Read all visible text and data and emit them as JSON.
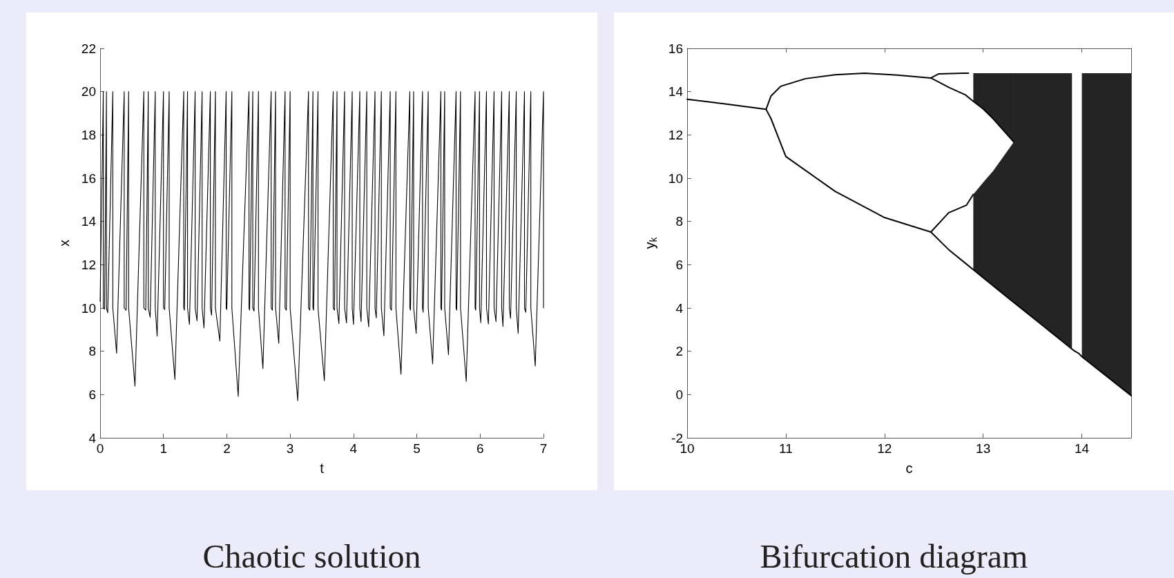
{
  "chart_data": [
    {
      "type": "line",
      "title": "Chaotic solution",
      "xlabel": "t",
      "ylabel": "x",
      "color": "#000000",
      "marker": "none",
      "line_style": "solid",
      "x": [
        0,
        0.05,
        0.05,
        0.07,
        0.1,
        0.1,
        0.12,
        0.2,
        0.2,
        0.26,
        0.38,
        0.38,
        0.41,
        0.45,
        0.45,
        0.55,
        0.69,
        0.69,
        0.72,
        0.76,
        0.76,
        0.79,
        0.87,
        0.87,
        0.9,
        1,
        1,
        1.02,
        1.09,
        1.09,
        1.18,
        1.32,
        1.32,
        1.33,
        1.38,
        1.38,
        1.41,
        1.5,
        1.5,
        1.53,
        1.61,
        1.61,
        1.64,
        1.74,
        1.74,
        1.76,
        1.82,
        1.82,
        1.89,
        1.99,
        1.99,
        2,
        2.08,
        2.08,
        2.18,
        2.35,
        2.35,
        2.36,
        2.41,
        2.41,
        2.43,
        2.5,
        2.5,
        2.57,
        2.7,
        2.7,
        2.72,
        2.77,
        2.77,
        2.82,
        2.92,
        2.92,
        2.94,
        3,
        3,
        3.12,
        3.29,
        3.29,
        3.31,
        3.36,
        3.36,
        3.37,
        3.44,
        3.44,
        3.54,
        3.68,
        3.68,
        3.7,
        3.74,
        3.74,
        3.77,
        3.86,
        3.86,
        3.89,
        3.98,
        3.98,
        4,
        4.1,
        4.1,
        4.12,
        4.21,
        4.21,
        4.24,
        4.34,
        4.34,
        4.36,
        4.44,
        4.44,
        4.48,
        4.58,
        4.58,
        4.6,
        4.67,
        4.67,
        4.75,
        4.89,
        4.89,
        4.9,
        4.95,
        4.95,
        4.99,
        5.09,
        5.09,
        5.1,
        5.18,
        5.18,
        5.25,
        5.38,
        5.38,
        5.39,
        5.44,
        5.44,
        5.5,
        5.62,
        5.62,
        5.63,
        5.69,
        5.69,
        5.78,
        5.92,
        5.92,
        5.93,
        5.99,
        5.99,
        6.01,
        6.1,
        6.1,
        6.13,
        6.22,
        6.22,
        6.25,
        6.34,
        6.34,
        6.36,
        6.46,
        6.46,
        6.48,
        6.57,
        6.57,
        6.6,
        6.7,
        6.7,
        6.72,
        6.8,
        6.8,
        6.87,
        7,
        7
      ],
      "values": [
        10.3,
        20,
        10,
        9.95,
        20,
        10,
        9.78,
        20,
        10,
        7.91,
        20,
        10,
        9.9,
        20,
        10,
        6.39,
        20,
        10,
        9.9,
        20,
        10,
        9.57,
        20,
        10,
        8.7,
        20,
        10,
        9.93,
        20,
        10,
        6.7,
        20,
        10,
        9.9,
        20,
        10,
        9.24,
        20,
        10,
        9.41,
        20,
        10,
        9.08,
        20,
        10,
        9.67,
        20,
        10,
        8.47,
        20,
        10,
        9.93,
        20,
        10,
        5.92,
        20,
        10,
        9.9,
        20,
        10,
        9.86,
        20,
        10,
        7.2,
        20,
        10,
        9.9,
        20,
        10,
        8.37,
        20,
        10,
        9.9,
        20,
        10,
        5.72,
        20,
        10,
        9.9,
        20,
        10,
        9.9,
        20,
        10,
        6.64,
        20,
        10,
        9.9,
        20,
        10,
        9.28,
        20,
        10,
        9.31,
        20,
        10,
        9.24,
        20,
        10,
        9.37,
        20,
        10,
        9.13,
        20,
        10,
        9.54,
        20,
        10,
        8.72,
        20,
        10,
        9.9,
        20,
        10,
        6.94,
        20,
        10,
        9.9,
        20,
        10,
        8.83,
        20,
        10,
        9.8,
        20,
        10,
        7.42,
        20,
        10,
        9.9,
        20,
        10,
        7.85,
        20,
        10,
        9.9,
        20,
        10,
        6.61,
        20,
        10,
        9.9,
        20,
        10,
        9.32,
        20,
        10,
        9.26,
        20,
        10,
        9.37,
        20,
        10,
        9.15,
        20,
        10,
        9.52,
        20,
        10,
        8.83,
        20,
        10,
        9.8,
        20,
        10,
        7.32,
        20,
        10
      ],
      "xlim": [
        0,
        7
      ],
      "xticks": [
        0,
        1,
        2,
        3,
        4,
        5,
        6,
        7
      ],
      "ylim": [
        4,
        22
      ],
      "yticks": [
        4,
        6,
        8,
        10,
        12,
        14,
        16,
        18,
        20,
        22
      ]
    },
    {
      "type": "line",
      "title": "Bifurcation diagram",
      "xlabel": "c",
      "ylabel": "y$_{k}$",
      "marker": "none",
      "line_style": "solid",
      "series": [
        {
          "color": "#000000",
          "x": [
            10,
            10.4,
            10.8
          ],
          "values": [
            13.65,
            13.42,
            13.18
          ]
        },
        {
          "color": "#000000",
          "x": [
            10.8,
            10.85,
            10.95,
            11.2,
            11.5,
            11.8,
            12.13,
            12.47,
            12.55,
            12.8,
            12.85
          ],
          "values": [
            13.18,
            13.8,
            14.25,
            14.6,
            14.78,
            14.85,
            14.76,
            14.63,
            14.82,
            14.85,
            14.85
          ]
        },
        {
          "color": "#000000",
          "x": [
            10.8,
            10.85,
            11,
            11.5,
            12,
            12.47,
            12.65,
            12.83,
            12.9,
            13,
            13.1,
            13.31,
            13.31,
            13.6,
            13.9,
            13.93,
            13.97,
            14,
            14.5
          ],
          "values": [
            13.18,
            12.75,
            11,
            9.39,
            8.18,
            7.51,
            6.7,
            6.03,
            5.77,
            5.4,
            5.03,
            4.26,
            4.26,
            3.2,
            2.1,
            2,
            1.9,
            1.75,
            -0.05
          ],
          "lower": [
            null,
            null,
            null,
            null,
            null,
            null,
            null,
            null,
            5.77,
            5.4,
            5.03,
            4.26,
            4.26,
            3.2,
            2.1,
            null,
            null,
            1.75,
            -0.05
          ],
          "upper": [
            null,
            null,
            null,
            null,
            null,
            null,
            null,
            null,
            9.25,
            9.8,
            10.33,
            11.67,
            14.85,
            14.85,
            14.85,
            null,
            null,
            14.85,
            14.85
          ]
        },
        {
          "color": "#000000",
          "x": [
            12.47,
            12.65,
            12.82,
            12.9,
            13,
            13.1,
            13.31
          ],
          "values": [
            14.63,
            14.2,
            13.85,
            13.55,
            13.2,
            12.75,
            11.67
          ],
          "lower": [
            null,
            null,
            null,
            13.55,
            13.2,
            12.75,
            11.67
          ],
          "upper": [
            null,
            null,
            null,
            14.85,
            14.85,
            14.85,
            14.85
          ]
        },
        {
          "color": "#000000",
          "x": [
            12.47,
            12.65,
            12.83,
            12.9
          ],
          "values": [
            7.51,
            8.4,
            8.75,
            9.25
          ]
        }
      ],
      "xlim": [
        10,
        14.5
      ],
      "xticks": [
        10,
        11,
        12,
        13,
        14
      ],
      "ylim": [
        -2,
        16
      ],
      "yticks": [
        -2,
        0,
        2,
        4,
        6,
        8,
        10,
        12,
        14,
        16
      ]
    }
  ]
}
